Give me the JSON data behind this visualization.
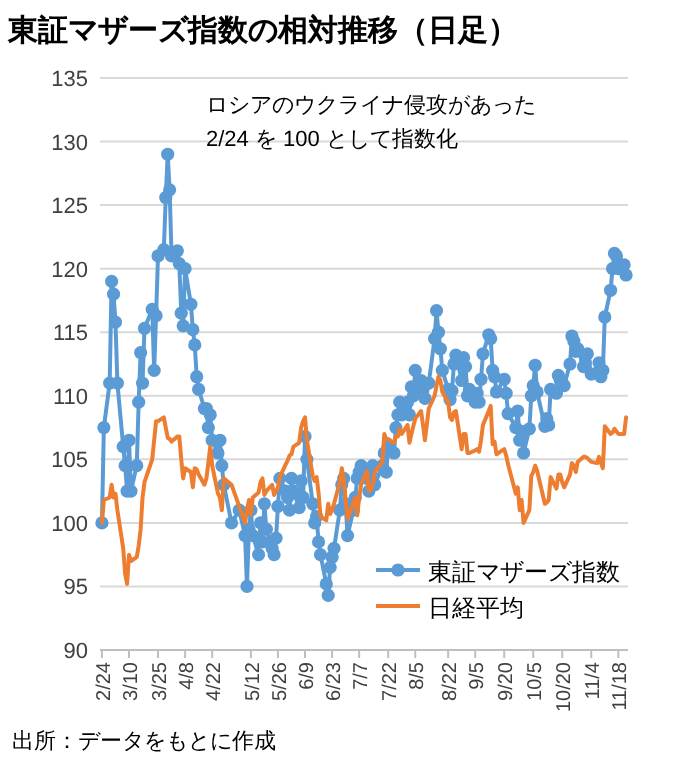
{
  "chart_data": {
    "type": "line",
    "title": "東証マザーズ指数の相対推移（日足）",
    "annotations": [
      "ロシアのウクライナ侵攻があった",
      "2/24 を 100 として指数化",
      "出所：データをもとに作成"
    ],
    "ylim": [
      90,
      135
    ],
    "yticks": [
      90,
      95,
      100,
      105,
      110,
      115,
      120,
      125,
      130,
      135
    ],
    "xlim": [
      "--02-23",
      "--11-23"
    ],
    "xticks": [
      {
        "value": "--02-24",
        "label": "2/24"
      },
      {
        "value": "--03-10",
        "label": "3/10"
      },
      {
        "value": "--03-25",
        "label": "3/25"
      },
      {
        "value": "--04-08",
        "label": "4/8"
      },
      {
        "value": "--04-22",
        "label": "4/22"
      },
      {
        "value": "--05-12",
        "label": "5/12"
      },
      {
        "value": "--05-26",
        "label": "5/26"
      },
      {
        "value": "--06-09",
        "label": "6/9"
      },
      {
        "value": "--06-23",
        "label": "6/23"
      },
      {
        "value": "--07-07",
        "label": "7/7"
      },
      {
        "value": "--07-22",
        "label": "7/22"
      },
      {
        "value": "--08-05",
        "label": "8/5"
      },
      {
        "value": "--08-22",
        "label": "8/22"
      },
      {
        "value": "--09-05",
        "label": "9/5"
      },
      {
        "value": "--09-20",
        "label": "9/20"
      },
      {
        "value": "--10-05",
        "label": "10/5"
      },
      {
        "value": "--10-20",
        "label": "10/20"
      },
      {
        "value": "--11-04",
        "label": "11/4"
      },
      {
        "value": "--11-18",
        "label": "11/18"
      }
    ],
    "grid": "y",
    "legend": "bottom right",
    "series": [
      {
        "name": "東証マザーズ指数",
        "color": "#5b9bd5",
        "marker": "circle",
        "x": [
          "--02-24",
          "--02-25",
          "--02-28",
          "--03-01",
          "--03-02",
          "--03-03",
          "--03-04",
          "--03-07",
          "--03-08",
          "--03-09",
          "--03-10",
          "--03-11",
          "--03-14",
          "--03-15",
          "--03-16",
          "--03-17",
          "--03-18",
          "--03-22",
          "--03-23",
          "--03-24",
          "--03-25",
          "--03-28",
          "--03-29",
          "--03-30",
          "--03-31",
          "--04-01",
          "--04-04",
          "--04-05",
          "--04-06",
          "--04-07",
          "--04-08",
          "--04-11",
          "--04-12",
          "--04-13",
          "--04-14",
          "--04-15",
          "--04-18",
          "--04-19",
          "--04-20",
          "--04-21",
          "--04-22",
          "--04-25",
          "--04-26",
          "--04-27",
          "--04-28",
          "--05-02",
          "--05-06",
          "--05-09",
          "--05-10",
          "--05-11",
          "--05-12",
          "--05-13",
          "--05-16",
          "--05-17",
          "--05-18",
          "--05-19",
          "--05-20",
          "--05-23",
          "--05-24",
          "--05-25",
          "--05-26",
          "--05-27",
          "--05-30",
          "--05-31",
          "--06-01",
          "--06-02",
          "--06-03",
          "--06-06",
          "--06-07",
          "--06-08",
          "--06-09",
          "--06-10",
          "--06-13",
          "--06-14",
          "--06-15",
          "--06-16",
          "--06-17",
          "--06-20",
          "--06-21",
          "--06-22",
          "--06-23",
          "--06-24",
          "--06-27",
          "--06-28",
          "--06-29",
          "--06-30",
          "--07-01",
          "--07-04",
          "--07-05",
          "--07-06",
          "--07-07",
          "--07-08",
          "--07-11",
          "--07-12",
          "--07-13",
          "--07-14",
          "--07-15",
          "--07-19",
          "--07-20",
          "--07-21",
          "--07-22",
          "--07-25",
          "--07-26",
          "--07-27",
          "--07-28",
          "--07-29",
          "--08-01",
          "--08-02",
          "--08-03",
          "--08-04",
          "--08-05",
          "--08-08",
          "--08-09",
          "--08-10",
          "--08-12",
          "--08-15",
          "--08-16",
          "--08-17",
          "--08-18",
          "--08-19",
          "--08-22",
          "--08-23",
          "--08-24",
          "--08-25",
          "--08-26",
          "--08-29",
          "--08-30",
          "--08-31",
          "--09-01",
          "--09-02",
          "--09-05",
          "--09-06",
          "--09-07",
          "--09-08",
          "--09-09",
          "--09-12",
          "--09-13",
          "--09-14",
          "--09-15",
          "--09-16",
          "--09-20",
          "--09-21",
          "--09-22",
          "--09-26",
          "--09-27",
          "--09-28",
          "--09-29",
          "--09-30",
          "--10-03",
          "--10-04",
          "--10-05",
          "--10-06",
          "--10-07",
          "--10-11",
          "--10-12",
          "--10-13",
          "--10-14",
          "--10-17",
          "--10-18",
          "--10-19",
          "--10-20",
          "--10-21",
          "--10-24",
          "--10-25",
          "--10-26",
          "--10-27",
          "--10-28",
          "--10-31",
          "--11-01",
          "--11-02",
          "--11-04",
          "--11-07",
          "--11-08",
          "--11-09",
          "--11-10",
          "--11-11",
          "--11-14",
          "--11-15",
          "--11-16",
          "--11-17",
          "--11-18",
          "--11-21",
          "--11-22"
        ],
        "values": [
          100,
          107.5,
          111,
          119,
          118,
          115.8,
          111,
          106,
          104.5,
          102.5,
          106.5,
          102.5,
          104.5,
          109.5,
          113.4,
          111,
          115.3,
          116.8,
          112,
          116.3,
          121,
          121.5,
          125.6,
          129,
          126.2,
          121,
          121.4,
          120.4,
          116.5,
          115.5,
          120,
          117.2,
          115.2,
          114,
          111.5,
          110.5,
          109,
          109,
          107.5,
          108.5,
          106.5,
          105.5,
          106.5,
          104.5,
          103,
          100,
          101,
          99,
          95,
          99.5,
          101,
          99,
          97.5,
          100,
          98.5,
          101.5,
          99.5,
          98,
          97.5,
          98.8,
          101.3,
          103.5,
          102.5,
          102,
          101,
          103.5,
          102.5,
          101.2,
          103.3,
          102,
          106.8,
          105,
          101.5,
          100,
          100.5,
          98.5,
          97.5,
          95.2,
          94.3,
          96.5,
          97.3,
          98,
          101,
          103,
          103.5,
          101.5,
          99,
          101,
          102,
          103.5,
          104,
          104.5,
          103.5,
          102.5,
          104,
          104.5,
          103,
          104.5,
          105.5,
          104,
          106,
          105.5,
          107.5,
          108.5,
          109.5,
          108.5,
          109.5,
          108.5,
          110.7,
          110,
          112,
          111.2,
          110.5,
          109.8,
          111,
          114.5,
          116.7,
          115,
          113.7,
          112,
          110.5,
          109.7,
          110.4,
          112.5,
          113.2,
          111.2,
          113,
          112.3,
          110,
          110.5,
          109.5,
          110.2,
          109.5,
          111.3,
          113.3,
          114.8,
          114.5,
          112,
          111.5,
          110.3,
          111.3,
          110.2,
          108.6,
          107.5,
          108.8,
          106.5,
          107.2,
          105.5,
          107.4,
          110,
          110.8,
          112.4,
          110.3,
          107.6,
          108.2,
          107.7,
          110.5,
          110.2,
          111.6,
          111.2,
          111,
          110.8,
          112.5,
          114.7,
          114.3,
          113.5,
          113.7,
          112.3,
          112.6,
          113.3,
          111.7,
          111.8,
          112.6,
          111.5,
          112,
          116.2,
          118.3,
          120,
          121.2,
          121,
          120,
          120.3,
          119.5
        ]
      },
      {
        "name": "日経平均",
        "color": "#ed7d31",
        "marker": "none",
        "x": [
          "--02-24",
          "--02-25",
          "--02-28",
          "--03-01",
          "--03-02",
          "--03-03",
          "--03-04",
          "--03-07",
          "--03-08",
          "--03-09",
          "--03-10",
          "--03-11",
          "--03-14",
          "--03-15",
          "--03-16",
          "--03-17",
          "--03-18",
          "--03-22",
          "--03-23",
          "--03-24",
          "--03-25",
          "--03-28",
          "--03-29",
          "--03-30",
          "--03-31",
          "--04-01",
          "--04-04",
          "--04-05",
          "--04-06",
          "--04-07",
          "--04-08",
          "--04-11",
          "--04-12",
          "--04-13",
          "--04-14",
          "--04-15",
          "--04-18",
          "--04-19",
          "--04-20",
          "--04-21",
          "--04-22",
          "--04-25",
          "--04-26",
          "--04-27",
          "--04-28",
          "--05-02",
          "--05-06",
          "--05-09",
          "--05-10",
          "--05-11",
          "--05-12",
          "--05-13",
          "--05-16",
          "--05-17",
          "--05-18",
          "--05-19",
          "--05-20",
          "--05-23",
          "--05-24",
          "--05-25",
          "--05-26",
          "--05-27",
          "--05-30",
          "--05-31",
          "--06-01",
          "--06-02",
          "--06-03",
          "--06-06",
          "--06-07",
          "--06-08",
          "--06-09",
          "--06-10",
          "--06-13",
          "--06-14",
          "--06-15",
          "--06-16",
          "--06-17",
          "--06-20",
          "--06-21",
          "--06-22",
          "--06-23",
          "--06-24",
          "--06-27",
          "--06-28",
          "--06-29",
          "--06-30",
          "--07-01",
          "--07-04",
          "--07-05",
          "--07-06",
          "--07-07",
          "--07-08",
          "--07-11",
          "--07-12",
          "--07-13",
          "--07-14",
          "--07-15",
          "--07-19",
          "--07-20",
          "--07-21",
          "--07-22",
          "--07-25",
          "--07-26",
          "--07-27",
          "--07-28",
          "--07-29",
          "--08-01",
          "--08-02",
          "--08-03",
          "--08-04",
          "--08-05",
          "--08-08",
          "--08-09",
          "--08-10",
          "--08-12",
          "--08-15",
          "--08-16",
          "--08-17",
          "--08-18",
          "--08-19",
          "--08-22",
          "--08-23",
          "--08-24",
          "--08-25",
          "--08-26",
          "--08-29",
          "--08-30",
          "--08-31",
          "--09-01",
          "--09-02",
          "--09-05",
          "--09-06",
          "--09-07",
          "--09-08",
          "--09-09",
          "--09-12",
          "--09-13",
          "--09-14",
          "--09-15",
          "--09-16",
          "--09-20",
          "--09-21",
          "--09-22",
          "--09-26",
          "--09-27",
          "--09-28",
          "--09-29",
          "--09-30",
          "--10-03",
          "--10-04",
          "--10-05",
          "--10-06",
          "--10-07",
          "--10-11",
          "--10-12",
          "--10-13",
          "--10-14",
          "--10-17",
          "--10-18",
          "--10-19",
          "--10-20",
          "--10-21",
          "--10-24",
          "--10-25",
          "--10-26",
          "--10-27",
          "--10-28",
          "--10-31",
          "--11-01",
          "--11-02",
          "--11-04",
          "--11-07",
          "--11-08",
          "--11-09",
          "--11-10",
          "--11-11",
          "--11-14",
          "--11-15",
          "--11-16",
          "--11-17",
          "--11-18",
          "--11-21",
          "--11-22"
        ],
        "values": [
          100,
          101.8,
          102,
          103,
          102,
          102.3,
          101,
          98,
          96,
          95.2,
          97.5,
          97,
          97.3,
          98.2,
          99.5,
          102,
          103.2,
          105,
          106.5,
          108,
          108,
          108.3,
          107.5,
          106.7,
          106.6,
          106.4,
          106.8,
          106.8,
          105,
          103.5,
          104.3,
          104,
          102.8,
          104.3,
          104.2,
          103.8,
          103,
          103.5,
          104.7,
          106,
          104.5,
          102.3,
          102,
          101,
          103.5,
          103,
          101.3,
          100,
          101,
          101.8,
          100.7,
          102,
          102.4,
          103.2,
          103.5,
          102.2,
          102.5,
          103,
          102.2,
          102.5,
          102.8,
          103.6,
          104.6,
          104.9,
          105.3,
          105.4,
          106,
          106.3,
          107.5,
          108,
          108.3,
          106.5,
          103.7,
          103.3,
          103.6,
          102.4,
          100.5,
          100.2,
          101.5,
          100.7,
          101,
          101.5,
          103.2,
          104.3,
          103.5,
          101.8,
          100.3,
          101.6,
          102,
          100.6,
          102,
          103,
          104.1,
          102.5,
          102.6,
          103,
          104,
          104.8,
          107,
          106.6,
          106.6,
          106.3,
          106.8,
          106.8,
          107.4,
          107,
          107.7,
          106.3,
          107,
          107.6,
          108.2,
          108.8,
          107.7,
          106.5,
          109,
          110,
          110.8,
          111.5,
          111.2,
          110.3,
          109.5,
          108.3,
          108.1,
          108.7,
          108.8,
          105.8,
          107,
          107,
          105.5,
          105.5,
          105.7,
          105.8,
          105.6,
          106.5,
          107.7,
          108.8,
          109.2,
          106.2,
          106.4,
          105.4,
          105.8,
          105.3,
          104.6,
          102.3,
          102.8,
          101,
          101.8,
          100,
          101,
          103.7,
          104,
          104.5,
          104.1,
          101.5,
          101.6,
          101.8,
          103.6,
          102.7,
          103.8,
          103.8,
          103.2,
          102.8,
          103.8,
          104.7,
          104.5,
          104,
          104.8,
          105.2,
          105.2,
          105.1,
          104.8,
          104.7,
          105.2,
          104.7,
          104.3,
          107.6,
          107,
          107.1,
          107.4,
          107.2,
          107,
          107,
          108.3
        ]
      }
    ]
  }
}
